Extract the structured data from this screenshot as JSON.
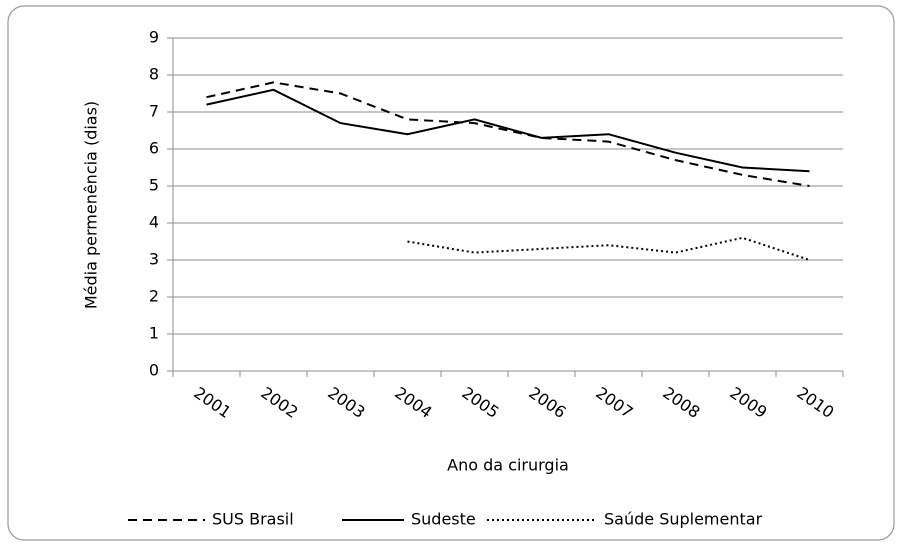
{
  "chart_data": {
    "type": "line",
    "xlabel": "Ano da cirurgia",
    "ylabel": "Média permenência (dias)",
    "categories": [
      "2001",
      "2002",
      "2003",
      "2004",
      "2005",
      "2006",
      "2007",
      "2008",
      "2009",
      "2010"
    ],
    "series": [
      {
        "name": "SUS Brasil",
        "color": "#000000",
        "dash": "dashed",
        "values": [
          7.4,
          7.8,
          7.5,
          6.8,
          6.7,
          6.3,
          6.2,
          5.7,
          5.3,
          5.0
        ]
      },
      {
        "name": "Sudeste",
        "color": "#000000",
        "dash": "solid",
        "values": [
          7.2,
          7.6,
          6.7,
          6.4,
          6.8,
          6.3,
          6.4,
          5.9,
          5.5,
          5.4
        ]
      },
      {
        "name": "Saúde Suplementar",
        "color": "#000000",
        "dash": "dotted",
        "values": [
          null,
          null,
          null,
          3.5,
          3.2,
          3.3,
          3.4,
          3.2,
          3.6,
          3.0
        ]
      }
    ],
    "ylim": [
      0,
      9
    ],
    "yticks": [
      0,
      1,
      2,
      3,
      4,
      5,
      6,
      7,
      8,
      9
    ],
    "grid": true,
    "legend": "bottom"
  }
}
